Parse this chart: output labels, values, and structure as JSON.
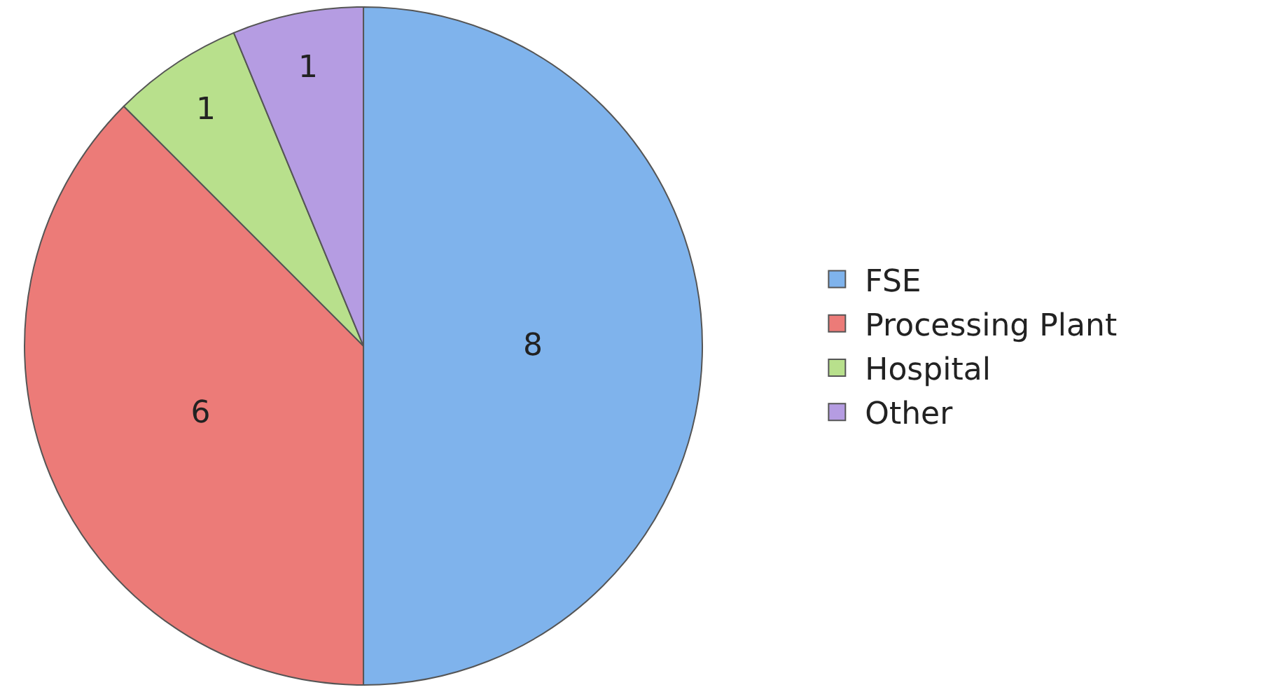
{
  "chart_data": {
    "type": "pie",
    "categories": [
      "FSE",
      "Processing Plant",
      "Hospital",
      "Other"
    ],
    "values": [
      8,
      6,
      1,
      1
    ],
    "colors": [
      "#7fb3ec",
      "#ec7b78",
      "#b8e08c",
      "#b59ce2"
    ],
    "data_labels": true,
    "legend": "right"
  }
}
